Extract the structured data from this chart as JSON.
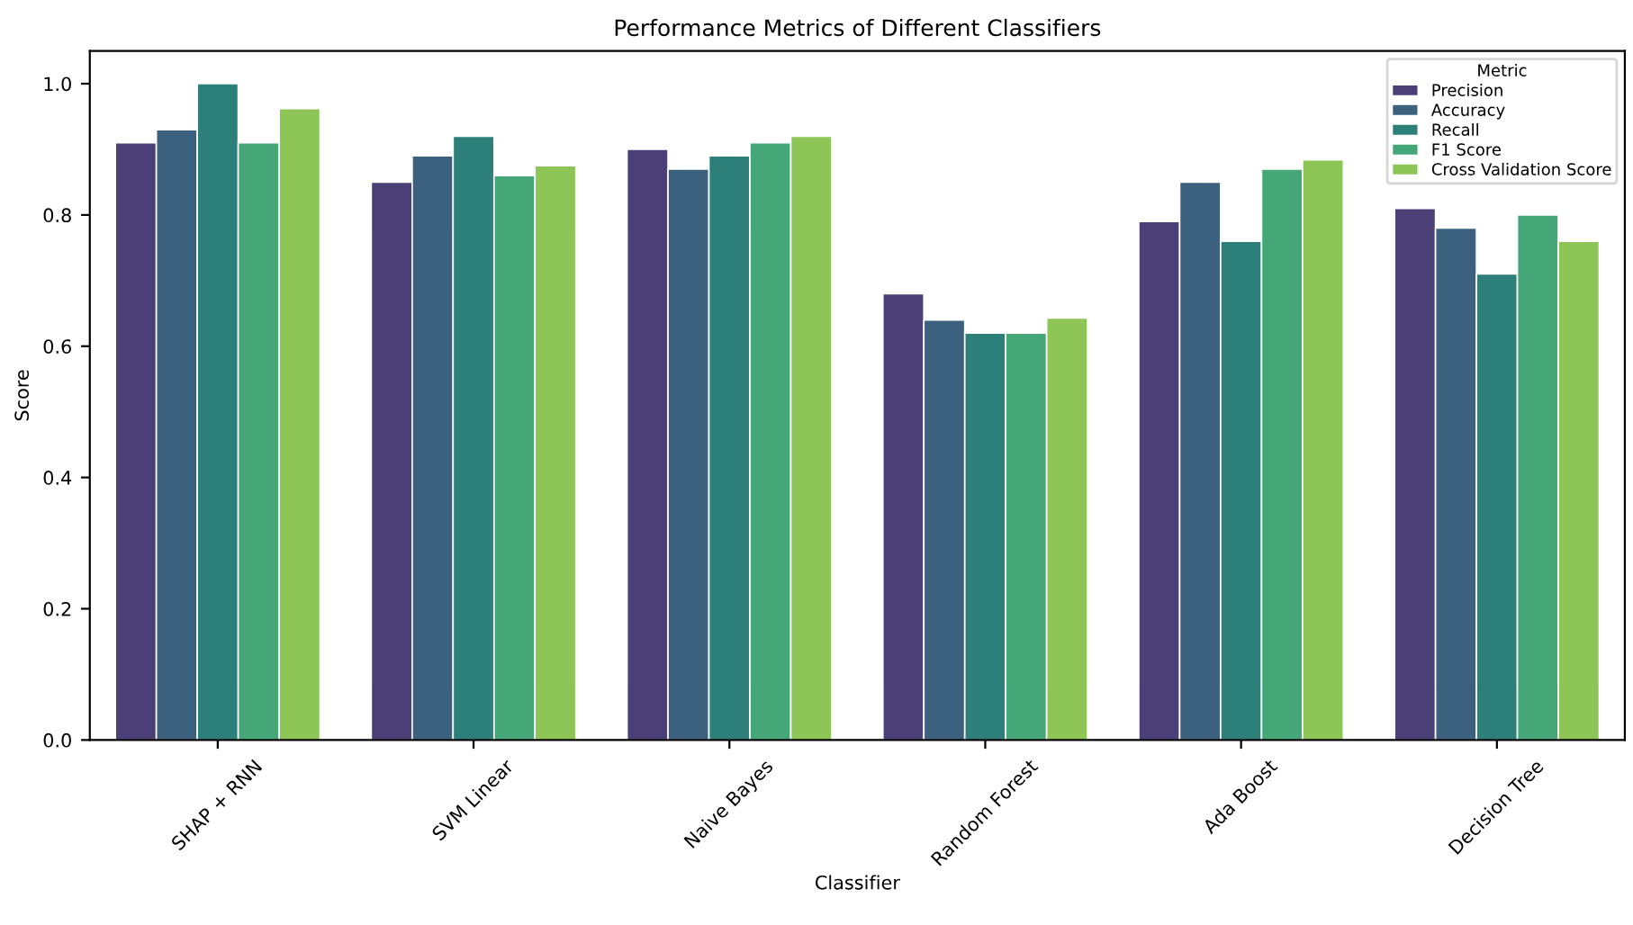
{
  "chart_data": {
    "type": "bar",
    "title": "Performance Metrics of Different Classifiers",
    "xlabel": "Classifier",
    "ylabel": "Score",
    "legend_title": "Metric",
    "categories": [
      "SHAP + RNN",
      "SVM Linear",
      "Naive Bayes",
      "Random Forest",
      "Ada Boost",
      "Decision Tree"
    ],
    "series": [
      {
        "name": "Precision",
        "color": "#4b3f78",
        "values": [
          0.91,
          0.85,
          0.9,
          0.68,
          0.79,
          0.81
        ]
      },
      {
        "name": "Accuracy",
        "color": "#3c617f",
        "values": [
          0.93,
          0.89,
          0.87,
          0.64,
          0.85,
          0.78
        ]
      },
      {
        "name": "Recall",
        "color": "#2d807a",
        "values": [
          1.0,
          0.92,
          0.89,
          0.62,
          0.76,
          0.71
        ]
      },
      {
        "name": "F1 Score",
        "color": "#45a777",
        "values": [
          0.91,
          0.86,
          0.91,
          0.62,
          0.87,
          0.8
        ]
      },
      {
        "name": "Cross Validation Score",
        "color": "#8dc556",
        "values": [
          0.962,
          0.875,
          0.92,
          0.643,
          0.884,
          0.76
        ]
      }
    ],
    "ylim": [
      0,
      1.05
    ],
    "yticks": [
      {
        "value": 0,
        "label": "0.0"
      },
      0.2,
      0.4,
      0.6,
      0.8,
      {
        "value": 1,
        "label": "1.0"
      }
    ],
    "grid": false,
    "legend": "top right"
  }
}
